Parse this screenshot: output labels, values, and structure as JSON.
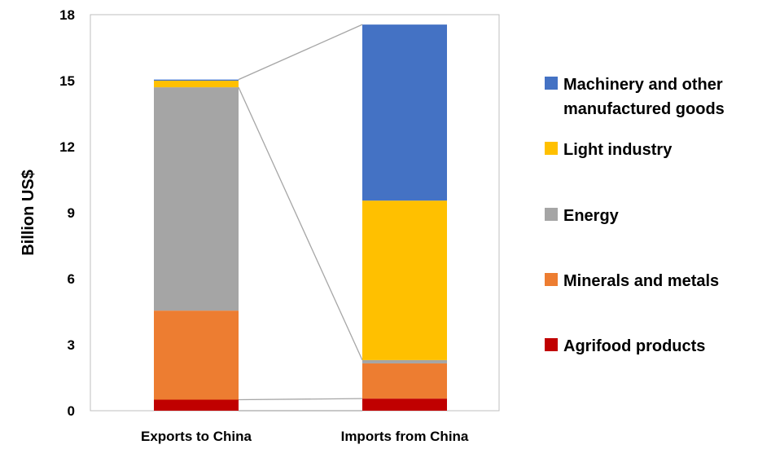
{
  "chart_data": {
    "type": "bar",
    "stacked": true,
    "categories": [
      "Exports to China",
      "Imports from China"
    ],
    "ylabel": "Billion US$",
    "ylim": [
      0,
      18
    ],
    "yticks": [
      0,
      3,
      6,
      9,
      12,
      15,
      18
    ],
    "grid": false,
    "legend_position": "right",
    "connector_lines": true,
    "series": [
      {
        "name": "Agrifood products",
        "color": "#C00000",
        "values": [
          0.5,
          0.55
        ]
      },
      {
        "name": "Minerals and metals",
        "color": "#ED7D31",
        "values": [
          4.05,
          1.6
        ]
      },
      {
        "name": "Energy",
        "color": "#A5A5A5",
        "values": [
          10.15,
          0.15
        ]
      },
      {
        "name": "Light industry",
        "color": "#FFC000",
        "values": [
          0.3,
          7.25
        ]
      },
      {
        "name": "Machinery and other manufactured goods",
        "color": "#4472C4",
        "values": [
          0.05,
          8.0
        ]
      }
    ],
    "legend": {
      "items": [
        {
          "label_lines": [
            "Machinery and other",
            "manufactured goods"
          ],
          "color": "#4472C4"
        },
        {
          "label_lines": [
            "Light industry"
          ],
          "color": "#FFC000"
        },
        {
          "label_lines": [
            "Energy"
          ],
          "color": "#A5A5A5"
        },
        {
          "label_lines": [
            "Minerals and metals"
          ],
          "color": "#ED7D31"
        },
        {
          "label_lines": [
            "Agrifood products"
          ],
          "color": "#C00000"
        }
      ]
    }
  }
}
